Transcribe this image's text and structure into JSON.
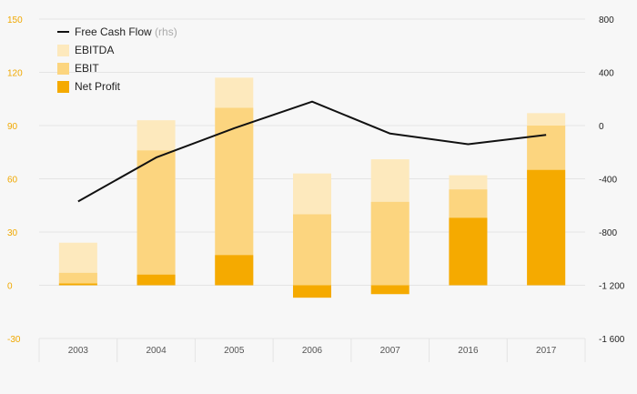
{
  "chart_data": {
    "type": "bar",
    "categories": [
      "2003",
      "2004",
      "2005",
      "2006",
      "2007",
      "2016",
      "2017"
    ],
    "series": [
      {
        "name": "EBITDA",
        "kind": "bar",
        "axis": "left",
        "color": "#fde9bd",
        "values": [
          24,
          93,
          117,
          63,
          71,
          62,
          97
        ]
      },
      {
        "name": "EBIT",
        "kind": "bar",
        "axis": "left",
        "color": "#fcd57f",
        "values": [
          7,
          76,
          100,
          40,
          47,
          54,
          90
        ]
      },
      {
        "name": "Net Profit",
        "kind": "bar",
        "axis": "left",
        "color": "#f5aa00",
        "values": [
          1,
          6,
          17,
          -7,
          -5,
          38,
          65
        ]
      },
      {
        "name": "Free Cash Flow",
        "kind": "line",
        "axis": "right",
        "color": "#111111",
        "values": [
          -570,
          -240,
          -20,
          180,
          -60,
          -140,
          -70
        ]
      }
    ],
    "legend": {
      "position": "top-left",
      "entries": [
        {
          "label": "Free Cash Flow",
          "note": "(rhs)",
          "color": "#111111",
          "marker": "line"
        },
        {
          "label": "EBITDA",
          "note": "",
          "color": "#fde9bd",
          "marker": "square"
        },
        {
          "label": "EBIT",
          "note": "",
          "color": "#fcd57f",
          "marker": "square"
        },
        {
          "label": "Net Profit",
          "note": "",
          "color": "#f5aa00",
          "marker": "square"
        }
      ]
    },
    "y_left": {
      "min": -30,
      "max": 150,
      "ticks": [
        -30,
        0,
        30,
        60,
        90,
        120,
        150
      ],
      "tick_labels": [
        "-30",
        "0",
        "30",
        "60",
        "90",
        "120",
        "150"
      ],
      "color": "#f0a800"
    },
    "y_right": {
      "min": -1600,
      "max": 800,
      "ticks": [
        -1600,
        -1200,
        -800,
        -400,
        0,
        400,
        800
      ],
      "tick_labels": [
        "-1 600",
        "-1 200",
        "-800",
        "-400",
        "0",
        "400",
        "800"
      ],
      "color": "#222222"
    },
    "title": "",
    "xlabel": "",
    "ylabel": "",
    "grid": true
  }
}
